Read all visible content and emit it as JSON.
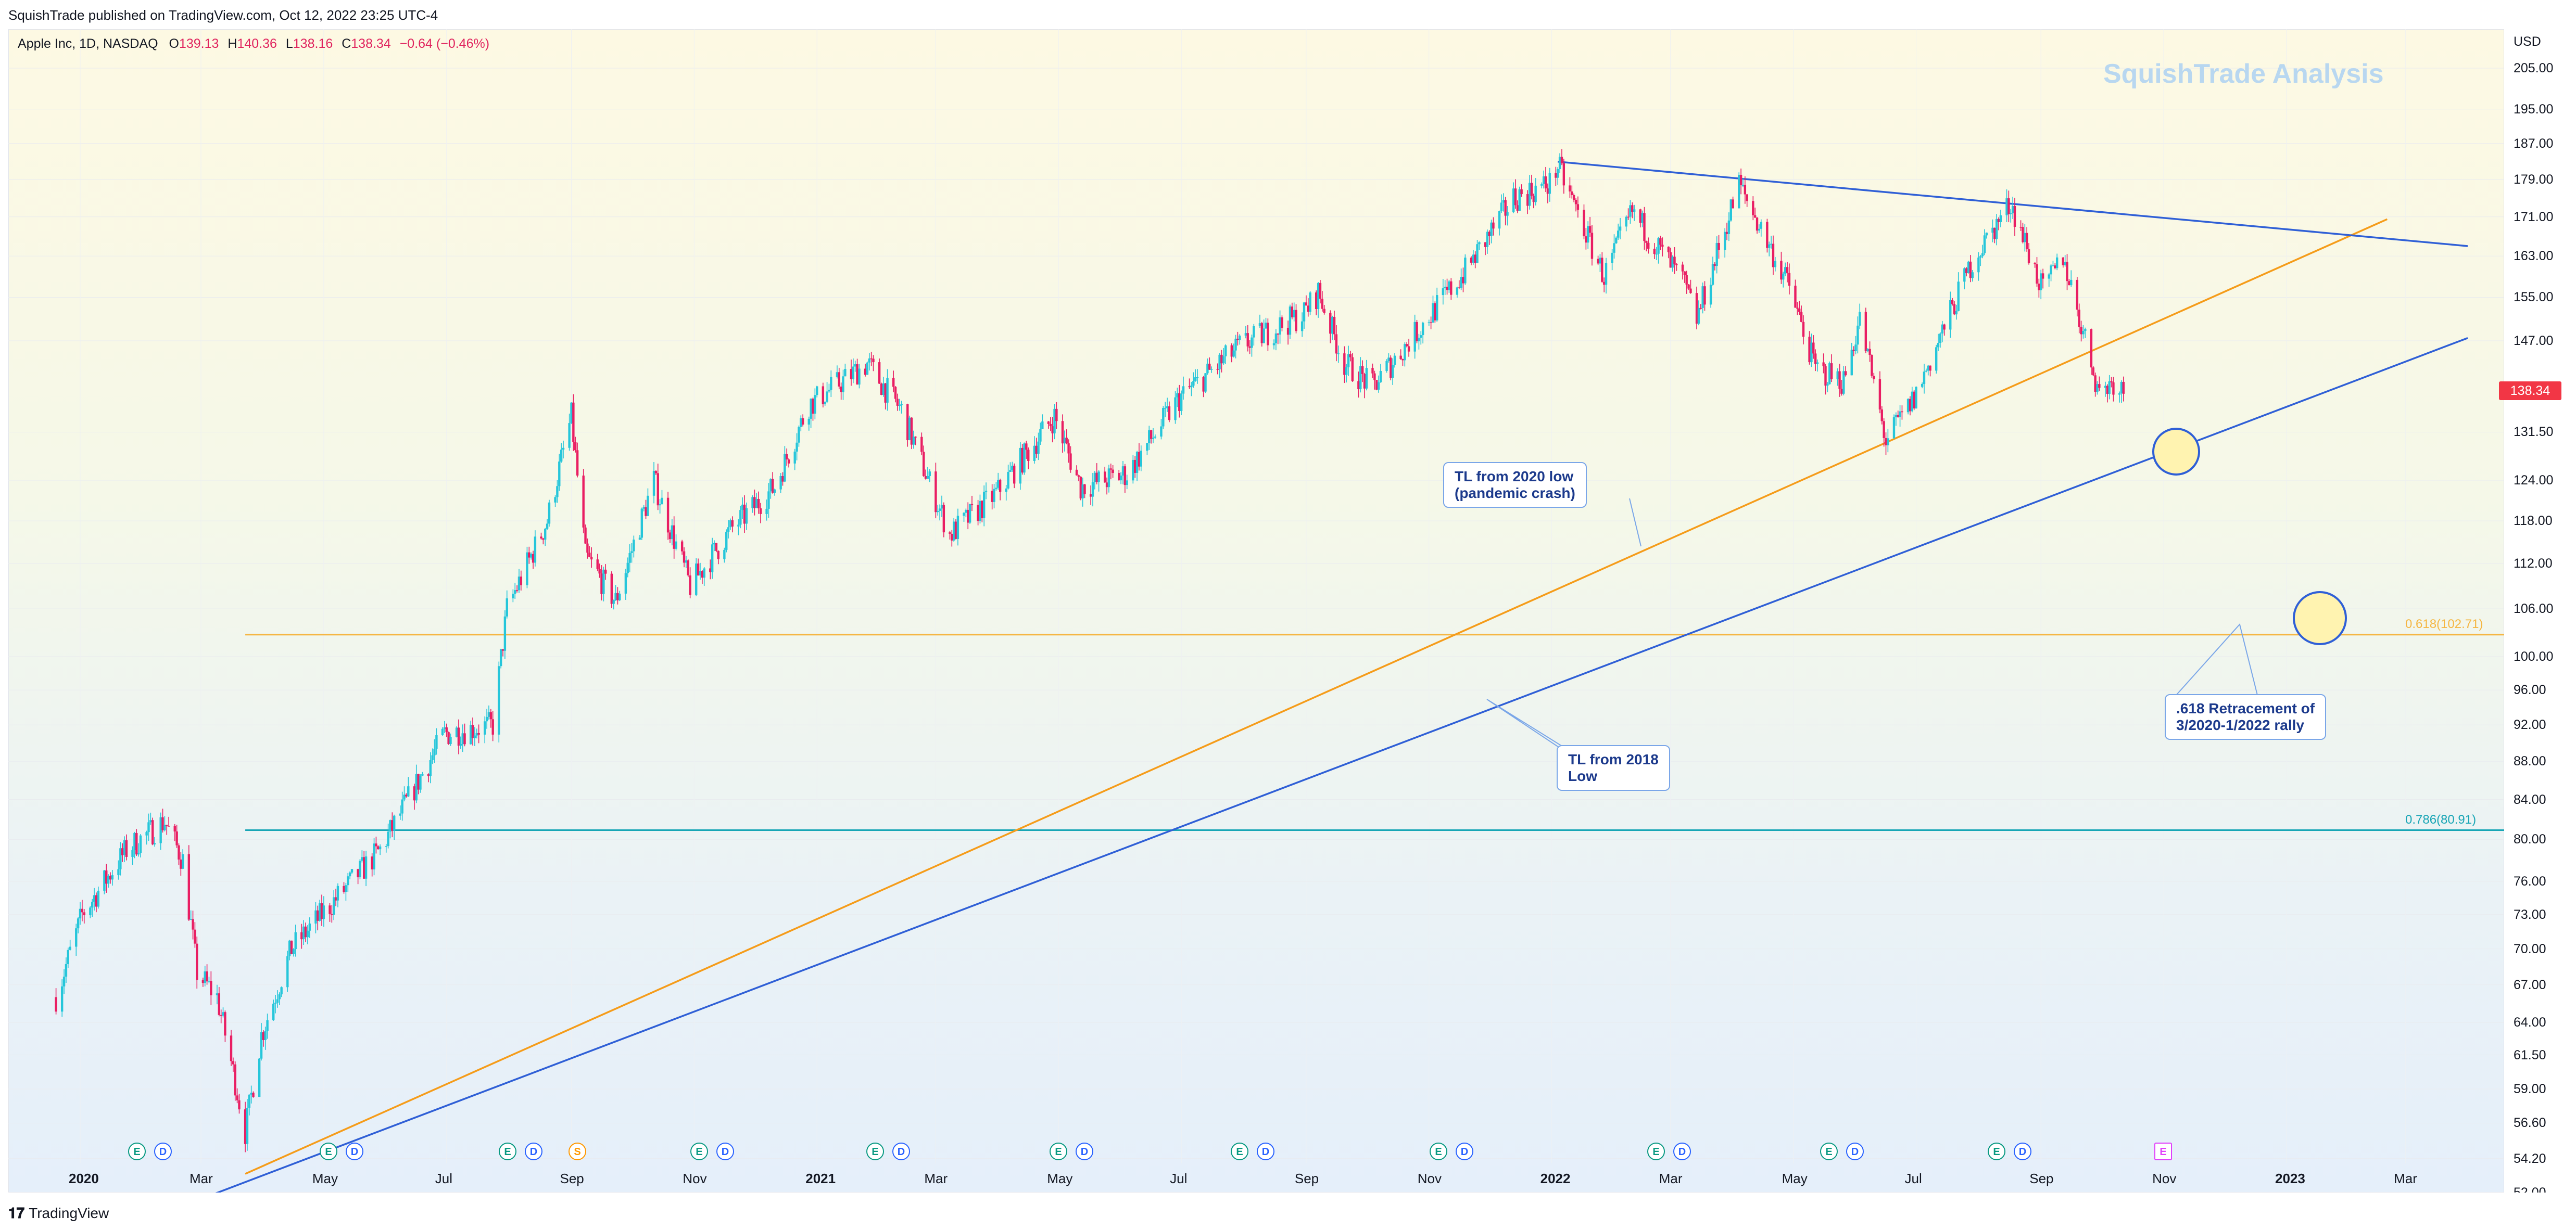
{
  "header": {
    "published": "SquishTrade published on TradingView.com, Oct 12, 2022 23:25 UTC-4"
  },
  "legend": {
    "symbol": "Apple Inc, 1D, NASDAQ",
    "o_label": "O",
    "o": "139.13",
    "h_label": "H",
    "h": "140.36",
    "l_label": "L",
    "l": "138.16",
    "c_label": "C",
    "c": "138.34",
    "change": "−0.64 (−0.46%)"
  },
  "watermark": "SquishTrade Analysis",
  "footer": {
    "brand": "TradingView"
  },
  "colors": {
    "up": "#26c6da",
    "down": "#e91e63",
    "orange_tl": "#f59c1a",
    "blue_tl": "#2f5fd6",
    "fib618": "#f5b642",
    "fib786": "#17a5b5",
    "highlight": "#fff3b0"
  },
  "chart_data": {
    "type": "candlestick",
    "currency": "USD",
    "price_axis_ticks": [
      "205.00",
      "195.00",
      "187.00",
      "179.00",
      "171.00",
      "163.00",
      "155.00",
      "147.00",
      "138.34",
      "131.50",
      "124.00",
      "118.00",
      "112.00",
      "106.00",
      "100.00",
      "96.00",
      "92.00",
      "88.00",
      "84.00",
      "80.00",
      "76.00",
      "73.00",
      "70.00",
      "67.00",
      "64.00",
      "61.50",
      "59.00",
      "56.60",
      "54.20",
      "52.00"
    ],
    "last_price": "138.34",
    "ylim": [
      52,
      215
    ],
    "scale": "log",
    "time_axis_labels": [
      {
        "label": "2020",
        "year": true
      },
      {
        "label": "Mar"
      },
      {
        "label": "May"
      },
      {
        "label": "Jul"
      },
      {
        "label": "Sep"
      },
      {
        "label": "Nov"
      },
      {
        "label": "2021",
        "year": true
      },
      {
        "label": "Mar"
      },
      {
        "label": "May"
      },
      {
        "label": "Jul"
      },
      {
        "label": "Sep"
      },
      {
        "label": "Nov"
      },
      {
        "label": "2022",
        "year": true
      },
      {
        "label": "Mar"
      },
      {
        "label": "May"
      },
      {
        "label": "Jul"
      },
      {
        "label": "Sep"
      },
      {
        "label": "Nov"
      },
      {
        "label": "2023",
        "year": true
      },
      {
        "label": "Mar"
      }
    ],
    "price_path": [
      [
        "2019-12-20",
        66
      ],
      [
        "2020-01-02",
        73
      ],
      [
        "2020-01-24",
        79
      ],
      [
        "2020-02-12",
        81.8
      ],
      [
        "2020-02-21",
        78
      ],
      [
        "2020-02-28",
        68
      ],
      [
        "2020-03-09",
        66
      ],
      [
        "2020-03-16",
        61
      ],
      [
        "2020-03-23",
        56
      ],
      [
        "2020-03-31",
        63
      ],
      [
        "2020-04-15",
        70
      ],
      [
        "2020-04-30",
        73
      ],
      [
        "2020-05-29",
        79
      ],
      [
        "2020-06-30",
        91
      ],
      [
        "2020-07-24",
        92
      ],
      [
        "2020-07-31",
        106
      ],
      [
        "2020-08-20",
        118
      ],
      [
        "2020-09-01",
        134
      ],
      [
        "2020-09-08",
        113
      ],
      [
        "2020-09-23",
        107
      ],
      [
        "2020-10-12",
        124
      ],
      [
        "2020-10-30",
        109
      ],
      [
        "2020-11-20",
        117
      ],
      [
        "2020-12-11",
        123
      ],
      [
        "2020-12-28",
        136
      ],
      [
        "2021-01-26",
        143
      ],
      [
        "2021-02-12",
        135
      ],
      [
        "2021-03-08",
        116
      ],
      [
        "2021-03-31",
        122
      ],
      [
        "2021-04-29",
        134
      ],
      [
        "2021-05-12",
        123
      ],
      [
        "2021-06-04",
        125
      ],
      [
        "2021-06-30",
        137
      ],
      [
        "2021-07-30",
        146
      ],
      [
        "2021-08-31",
        152
      ],
      [
        "2021-09-07",
        156
      ],
      [
        "2021-09-20",
        143
      ],
      [
        "2021-10-04",
        139
      ],
      [
        "2021-10-29",
        150
      ],
      [
        "2021-11-19",
        160
      ],
      [
        "2021-12-13",
        175
      ],
      [
        "2021-12-31",
        178
      ],
      [
        "2022-01-04",
        182
      ],
      [
        "2022-01-27",
        159
      ],
      [
        "2022-02-10",
        172
      ],
      [
        "2022-03-07",
        158
      ],
      [
        "2022-03-14",
        151
      ],
      [
        "2022-04-04",
        178
      ],
      [
        "2022-04-29",
        157
      ],
      [
        "2022-05-12",
        142
      ],
      [
        "2022-05-26",
        140
      ],
      [
        "2022-06-03",
        151
      ],
      [
        "2022-06-16",
        130
      ],
      [
        "2022-06-30",
        137
      ],
      [
        "2022-07-29",
        162
      ],
      [
        "2022-08-17",
        174
      ],
      [
        "2022-09-02",
        156
      ],
      [
        "2022-09-12",
        163
      ],
      [
        "2022-09-30",
        138
      ],
      [
        "2022-10-07",
        140
      ],
      [
        "2022-10-12",
        138.34
      ]
    ],
    "trendlines": [
      {
        "color": "orange_tl",
        "from": [
          "2020-03-23",
          53.2
        ],
        "to": [
          "2023-02-20",
          170.5
        ]
      },
      {
        "color": "blue_tl",
        "from": [
          "2020-02-28",
          51.5
        ],
        "to": [
          "2023-04-01",
          147.5
        ]
      },
      {
        "color": "blue_tl",
        "from": [
          "2022-01-04",
          182.9
        ],
        "to": [
          "2023-04-01",
          165
        ]
      }
    ],
    "fib_levels": [
      {
        "label": "0.618(102.71)",
        "value": 102.71,
        "color": "fib618"
      },
      {
        "label": "0.786(80.91)",
        "value": 80.91,
        "color": "fib786"
      }
    ],
    "annotations": [
      {
        "text": [
          "TL from 2020 low",
          "(pandemic crash)"
        ]
      },
      {
        "text": [
          "TL from 2018",
          "Low"
        ]
      },
      {
        "text": [
          ".618 Retracement of",
          "3/2020-1/2022 rally"
        ]
      }
    ],
    "events": [
      "E",
      "D",
      "E",
      "D",
      "E",
      "D",
      "S",
      "E",
      "D",
      "E",
      "D",
      "E",
      "D",
      "E",
      "D",
      "E",
      "D",
      "E",
      "D",
      "E",
      "D",
      "E",
      "D",
      "E"
    ]
  }
}
